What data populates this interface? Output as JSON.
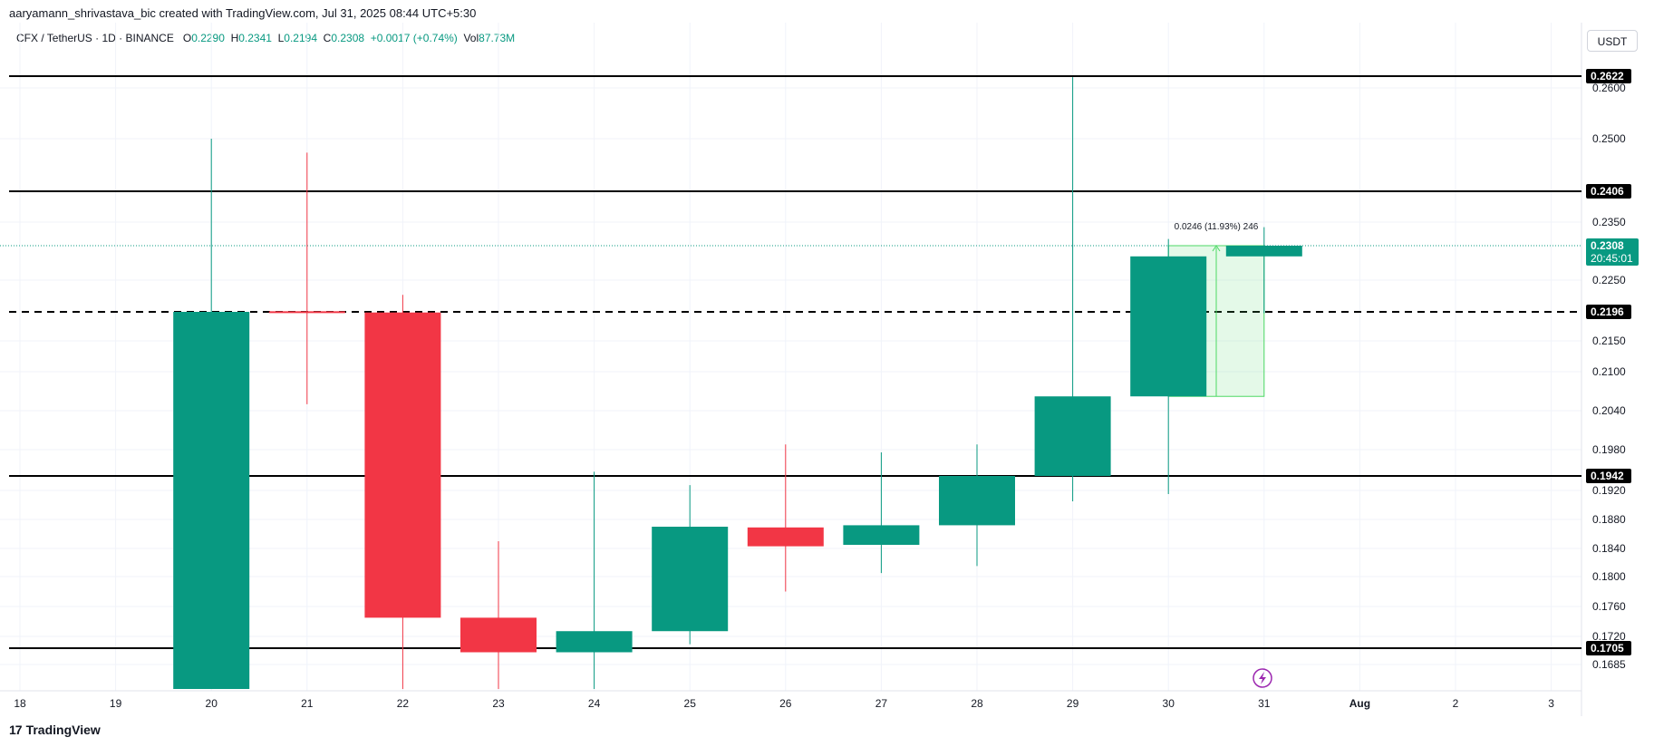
{
  "header": {
    "attribution": "aaryamann_shrivastava_bic created with TradingView.com, Jul 31, 2025 08:44 UTC+5:30"
  },
  "legend": {
    "symbol": "CFX / TetherUS · 1D · BINANCE",
    "open_label": "O",
    "open": "0.2290",
    "high_label": "H",
    "high": "0.2341",
    "low_label": "L",
    "low": "0.2194",
    "close_label": "C",
    "close": "0.2308",
    "change": "+0.0017 (+0.74%)",
    "vol_label": "Vol",
    "vol": "87.73M"
  },
  "currency": "USDT",
  "footer": {
    "brand": "TradingView",
    "logo": "17"
  },
  "colors": {
    "up": "#089981",
    "down": "#f23645",
    "measure": "#4cd964",
    "grid": "#f0f3fa",
    "text": "#131722",
    "price_badge": "#089981"
  },
  "chart_data": {
    "type": "candlestick",
    "symbol": "CFX / TetherUS",
    "timeframe": "1D",
    "exchange": "BINANCE",
    "x_ticks": [
      "18",
      "19",
      "20",
      "21",
      "22",
      "23",
      "24",
      "25",
      "26",
      "27",
      "28",
      "29",
      "30",
      "31",
      "Aug",
      "2",
      "3"
    ],
    "y_ticks": [
      "0.2600",
      "0.2500",
      "0.2350",
      "0.2250",
      "0.2150",
      "0.2100",
      "0.2040",
      "0.1980",
      "0.1920",
      "0.1880",
      "0.1840",
      "0.1800",
      "0.1760",
      "0.1720",
      "0.1685"
    ],
    "candles": [
      {
        "day": "20",
        "open": 0.1665,
        "high": 0.25,
        "low": 0.1665,
        "close": 0.2196
      },
      {
        "day": "21",
        "open": 0.2197,
        "high": 0.2475,
        "low": 0.205,
        "close": 0.2195
      },
      {
        "day": "22",
        "open": 0.2195,
        "high": 0.2225,
        "low": 0.1665,
        "close": 0.1745
      },
      {
        "day": "23",
        "open": 0.1745,
        "high": 0.185,
        "low": 0.1665,
        "close": 0.17
      },
      {
        "day": "24",
        "open": 0.17,
        "high": 0.1948,
        "low": 0.1665,
        "close": 0.1727
      },
      {
        "day": "25",
        "open": 0.1727,
        "high": 0.1928,
        "low": 0.171,
        "close": 0.187
      },
      {
        "day": "26",
        "open": 0.1869,
        "high": 0.1988,
        "low": 0.178,
        "close": 0.1843
      },
      {
        "day": "27",
        "open": 0.1845,
        "high": 0.1976,
        "low": 0.1805,
        "close": 0.1872
      },
      {
        "day": "28",
        "open": 0.1872,
        "high": 0.1988,
        "low": 0.1815,
        "close": 0.1942
      },
      {
        "day": "29",
        "open": 0.1942,
        "high": 0.262,
        "low": 0.1905,
        "close": 0.2062
      },
      {
        "day": "30",
        "open": 0.2062,
        "high": 0.232,
        "low": 0.1915,
        "close": 0.229
      },
      {
        "day": "31",
        "open": 0.229,
        "high": 0.2341,
        "low": 0.2194,
        "close": 0.2308
      }
    ],
    "horizontal_levels": [
      {
        "value": "0.2622",
        "style": "solid"
      },
      {
        "value": "0.2406",
        "style": "solid"
      },
      {
        "value": "0.2196",
        "style": "dashed"
      },
      {
        "value": "0.1942",
        "style": "solid"
      },
      {
        "value": "0.1705",
        "style": "solid"
      }
    ],
    "last_price": {
      "value": "0.2308",
      "countdown": "20:45:01"
    },
    "measure": {
      "label": "0.0246 (11.93%) 246",
      "from": 0.2062,
      "to": 0.2308,
      "from_day": "30",
      "to_day": "31"
    },
    "grid": true
  }
}
